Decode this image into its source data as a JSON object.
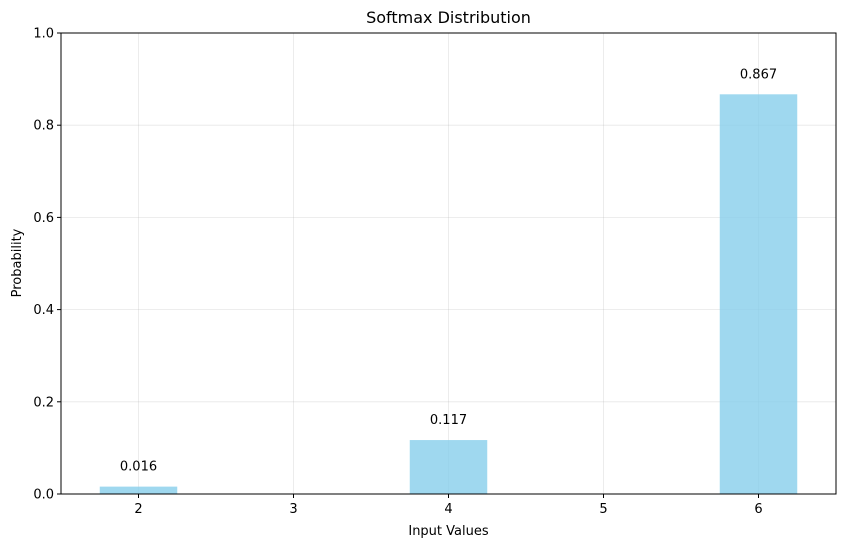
{
  "chart_data": {
    "type": "bar",
    "title": "Softmax Distribution",
    "xlabel": "Input Values",
    "ylabel": "Probability",
    "x": [
      2,
      4,
      6
    ],
    "values": [
      0.016,
      0.117,
      0.867
    ],
    "data_labels": [
      "0.016",
      "0.117",
      "0.867"
    ],
    "xlim": [
      1.5,
      6.5
    ],
    "ylim": [
      0,
      1
    ],
    "xticks": [
      "2",
      "3",
      "4",
      "5",
      "6"
    ],
    "yticks": [
      "0.0",
      "0.2",
      "0.4",
      "0.6",
      "0.8",
      "1.0"
    ],
    "bar_color": "#87ceeb",
    "bar_opacity": 0.8,
    "grid": true
  }
}
